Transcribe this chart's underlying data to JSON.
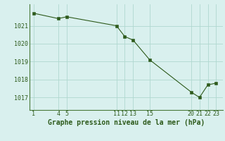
{
  "x": [
    1,
    4,
    5,
    11,
    12,
    13,
    15,
    20,
    21,
    22,
    23
  ],
  "y": [
    1021.7,
    1021.4,
    1021.5,
    1021.0,
    1020.4,
    1020.2,
    1019.1,
    1017.3,
    1017.0,
    1017.7,
    1017.8
  ],
  "line_color": "#2d5a1b",
  "marker_color": "#2d5a1b",
  "background_color": "#d9f0ee",
  "grid_color": "#b0d8d0",
  "axis_color": "#4a7a3a",
  "xlabel": "Graphe pression niveau de la mer (hPa)",
  "yticks": [
    1017,
    1018,
    1019,
    1020,
    1021
  ],
  "xticks": [
    1,
    4,
    5,
    11,
    12,
    13,
    15,
    20,
    21,
    22,
    23
  ],
  "ylim": [
    1016.3,
    1022.2
  ],
  "xlim": [
    0.5,
    23.8
  ],
  "tick_fontsize": 6.0,
  "xlabel_fontsize": 7.0
}
